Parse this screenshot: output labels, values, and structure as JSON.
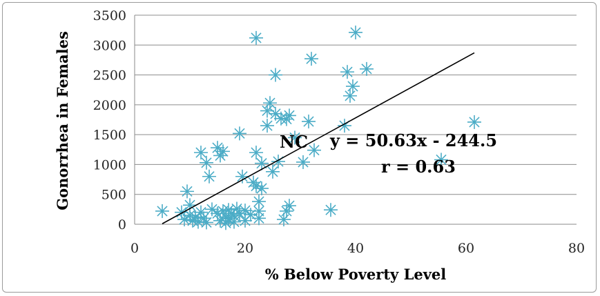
{
  "chart_data": {
    "type": "scatter",
    "xlabel": "% Below Poverty Level",
    "ylabel": "Gonorrhea in Females",
    "xlim": [
      0,
      80
    ],
    "ylim": [
      0,
      3500
    ],
    "xticks": [
      "0",
      "20",
      "40",
      "60",
      "80"
    ],
    "yticks": [
      "0",
      "500",
      "1000",
      "1500",
      "2000",
      "2500",
      "3000",
      "3500"
    ],
    "grid": "horizontal",
    "marker": "asterisk",
    "marker_color": "#4bacc6",
    "trendline": {
      "slope": 50.63,
      "intercept": -244.5,
      "x_range": [
        5,
        61.5
      ],
      "color": "#000000"
    },
    "annotations": {
      "nc_label": "NC",
      "equation": "y = 50.63x - 244.5",
      "r_value": "r = 0.63"
    },
    "points": [
      [
        5,
        220
      ],
      [
        9.5,
        550
      ],
      [
        10,
        320
      ],
      [
        8.5,
        200
      ],
      [
        9,
        80
      ],
      [
        10,
        150
      ],
      [
        10.5,
        60
      ],
      [
        11,
        120
      ],
      [
        11.5,
        40
      ],
      [
        12,
        200
      ],
      [
        12,
        1200
      ],
      [
        12.5,
        100
      ],
      [
        13,
        30
      ],
      [
        13.5,
        800
      ],
      [
        13,
        1030
      ],
      [
        14,
        250
      ],
      [
        15,
        1280
      ],
      [
        15.5,
        1150
      ],
      [
        15,
        180
      ],
      [
        15.5,
        60
      ],
      [
        16,
        220
      ],
      [
        16,
        1220
      ],
      [
        16.5,
        120
      ],
      [
        16.5,
        20
      ],
      [
        17,
        240
      ],
      [
        17,
        90
      ],
      [
        17.5,
        180
      ],
      [
        18,
        140
      ],
      [
        18,
        40
      ],
      [
        18.5,
        260
      ],
      [
        19,
        1520
      ],
      [
        19,
        180
      ],
      [
        19.5,
        800
      ],
      [
        20,
        230
      ],
      [
        20,
        60
      ],
      [
        21,
        160
      ],
      [
        21.5,
        700
      ],
      [
        22,
        3120
      ],
      [
        22,
        1200
      ],
      [
        22,
        640
      ],
      [
        22.5,
        380
      ],
      [
        22.5,
        220
      ],
      [
        22.5,
        100
      ],
      [
        23,
        600
      ],
      [
        23,
        1020
      ],
      [
        24,
        1650
      ],
      [
        24,
        1900
      ],
      [
        24.5,
        2030
      ],
      [
        25,
        880
      ],
      [
        25.5,
        1850
      ],
      [
        25.5,
        2500
      ],
      [
        26,
        1050
      ],
      [
        26.5,
        1770
      ],
      [
        27,
        80
      ],
      [
        27.5,
        220
      ],
      [
        27.5,
        1760
      ],
      [
        28,
        310
      ],
      [
        28,
        1820
      ],
      [
        29,
        1450
      ],
      [
        30.5,
        1040
      ],
      [
        31.5,
        1720
      ],
      [
        32,
        2770
      ],
      [
        32.5,
        1240
      ],
      [
        35.5,
        240
      ],
      [
        38,
        1650
      ],
      [
        38.5,
        2550
      ],
      [
        39,
        2150
      ],
      [
        39.5,
        2310
      ],
      [
        40,
        3210
      ],
      [
        42,
        2600
      ],
      [
        55.5,
        1080
      ],
      [
        61.5,
        1710
      ]
    ]
  }
}
